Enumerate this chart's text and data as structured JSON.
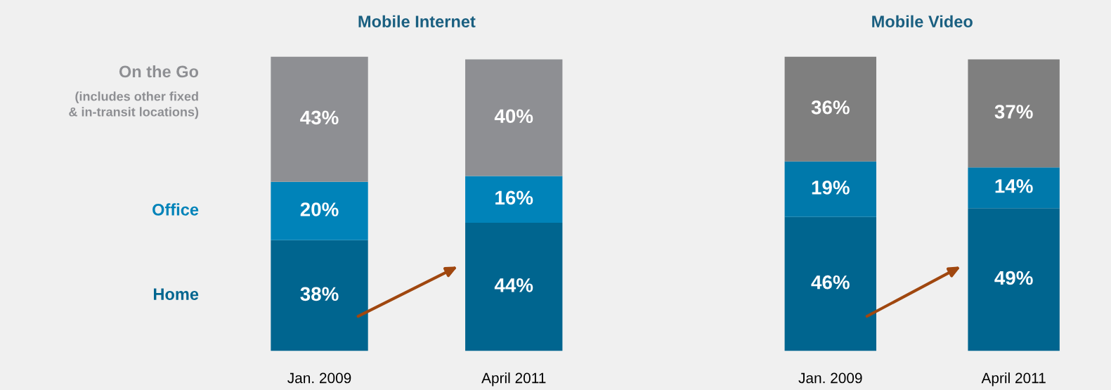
{
  "chart_data": [
    {
      "type": "bar",
      "title": "Mobile Internet",
      "stacked": true,
      "legend": "left",
      "categories": [
        "Jan. 2009",
        "April 2011"
      ],
      "series": [
        {
          "name": "Home",
          "color": "#00658f",
          "values": [
            38,
            44
          ],
          "value_labels": [
            "38%",
            "44%"
          ]
        },
        {
          "name": "Office",
          "color": "#0083b9",
          "values": [
            20,
            16
          ],
          "value_labels": [
            "20%",
            "16%"
          ]
        },
        {
          "name": "On the Go",
          "color": "#8e8f93",
          "values": [
            43,
            40
          ],
          "value_labels": [
            "43%",
            "40%"
          ]
        }
      ],
      "annotations": [
        "(includes other fixed\n& in-transit locations)"
      ]
    },
    {
      "type": "bar",
      "title": "Mobile Video",
      "stacked": true,
      "categories": [
        "Jan. 2009",
        "April 2011"
      ],
      "series": [
        {
          "color": "#00658f",
          "values": [
            46,
            49
          ],
          "value_labels": [
            "46%",
            "49%"
          ]
        },
        {
          "color": "#0079ab",
          "values": [
            19,
            14
          ],
          "value_labels": [
            "19%",
            "14%"
          ]
        },
        {
          "color": "#7f7f7f",
          "values": [
            36,
            37
          ],
          "value_labels": [
            "36%",
            "37%"
          ]
        }
      ]
    }
  ]
}
